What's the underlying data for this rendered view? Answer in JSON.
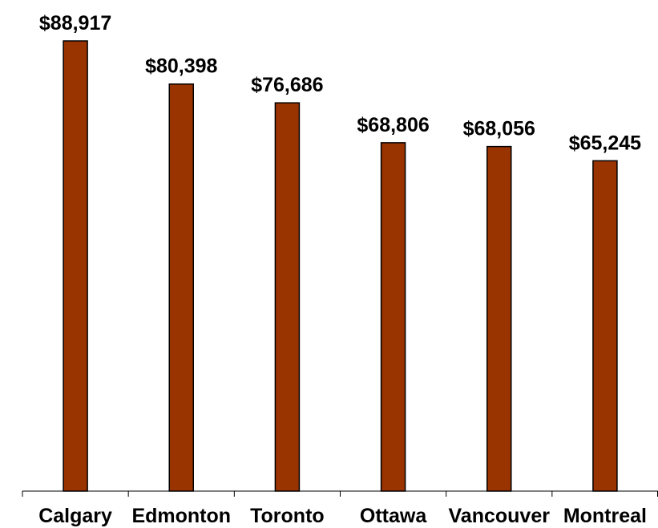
{
  "chart_data": {
    "type": "bar",
    "categories": [
      "Calgary",
      "Edmonton",
      "Toronto",
      "Ottawa",
      "Vancouver",
      "Montreal"
    ],
    "values": [
      88917,
      80398,
      76686,
      68806,
      68056,
      65245
    ],
    "value_labels": [
      "$88,917",
      "$80,398",
      "$76,686",
      "$68,806",
      "$68,056",
      "$65,245"
    ],
    "title": "",
    "xlabel": "",
    "ylabel": "",
    "ylim": [
      0,
      89000
    ],
    "grid": false,
    "legend": "none",
    "colors": {
      "bar_fill": "#993300",
      "bar_stroke": "#000000",
      "axis": "#000000"
    }
  }
}
